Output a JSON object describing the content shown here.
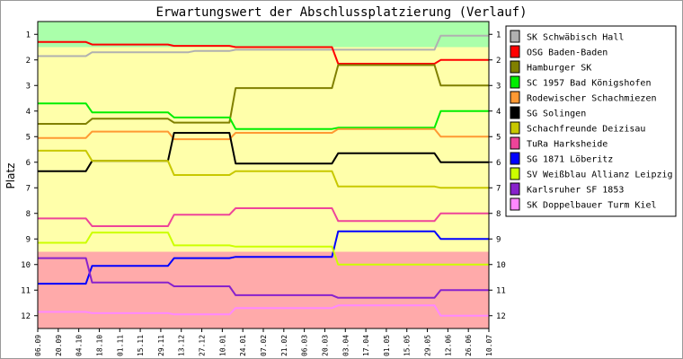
{
  "chart_data": {
    "type": "line",
    "title": "Erwartungswert der Abschlussplatzierung (Verlauf)",
    "ylabel": "Platz",
    "xlabel": "",
    "ylim": [
      12,
      1
    ],
    "y_ticks": [
      1,
      2,
      3,
      4,
      5,
      6,
      7,
      8,
      9,
      10,
      11,
      12
    ],
    "grid": false,
    "legend_position": "right",
    "x": [
      "06.09",
      "20.09",
      "04.10",
      "18.10",
      "01.11",
      "15.11",
      "29.11",
      "13.12",
      "27.12",
      "10.01",
      "24.01",
      "07.02",
      "21.02",
      "06.03",
      "20.03",
      "03.04",
      "17.04",
      "01.05",
      "15.05",
      "29.05",
      "12.06",
      "26.06",
      "10.07"
    ],
    "zones": [
      {
        "from": 0.5,
        "to": 1.5,
        "color": "#aaffaa"
      },
      {
        "from": 1.5,
        "to": 9.5,
        "color": "#ffffaa"
      },
      {
        "from": 9.5,
        "to": 12.5,
        "color": "#ffaaaa"
      }
    ],
    "series": [
      {
        "name": "SK Schwäbisch Hall",
        "color": "#b0b0b0",
        "values": [
          1.85,
          1.85,
          1.85,
          1.7,
          1.7,
          1.7,
          1.7,
          1.7,
          1.65,
          1.65,
          1.6,
          1.6,
          1.6,
          1.6,
          1.6,
          1.6,
          1.6,
          1.6,
          1.6,
          1.6,
          1.05,
          1.05,
          1.05
        ]
      },
      {
        "name": "OSG Baden-Baden",
        "color": "#ff0000",
        "values": [
          1.3,
          1.3,
          1.3,
          1.4,
          1.4,
          1.4,
          1.4,
          1.45,
          1.45,
          1.45,
          1.5,
          1.5,
          1.5,
          1.5,
          1.5,
          2.15,
          2.15,
          2.15,
          2.15,
          2.15,
          2.0,
          2.0,
          2.0
        ]
      },
      {
        "name": "Hamburger SK",
        "color": "#808000",
        "values": [
          4.5,
          4.5,
          4.5,
          4.3,
          4.3,
          4.3,
          4.3,
          4.45,
          4.45,
          4.45,
          3.1,
          3.1,
          3.1,
          3.1,
          3.1,
          2.2,
          2.2,
          2.2,
          2.2,
          2.2,
          3.0,
          3.0,
          3.0
        ]
      },
      {
        "name": "SC 1957 Bad Königshofen",
        "color": "#00ee00",
        "values": [
          3.7,
          3.7,
          3.7,
          4.05,
          4.05,
          4.05,
          4.05,
          4.25,
          4.25,
          4.25,
          4.7,
          4.7,
          4.7,
          4.7,
          4.7,
          4.65,
          4.65,
          4.65,
          4.65,
          4.65,
          4.0,
          4.0,
          4.0
        ]
      },
      {
        "name": "Rodewischer Schachmiezen",
        "color": "#ff9933",
        "values": [
          5.05,
          5.05,
          5.05,
          4.8,
          4.8,
          4.8,
          4.8,
          5.1,
          5.1,
          5.1,
          4.85,
          4.85,
          4.85,
          4.85,
          4.85,
          4.7,
          4.7,
          4.7,
          4.7,
          4.7,
          5.0,
          5.0,
          5.0
        ]
      },
      {
        "name": "SG Solingen",
        "color": "#000000",
        "values": [
          6.35,
          6.35,
          6.35,
          5.95,
          5.95,
          5.95,
          5.95,
          4.85,
          4.85,
          4.85,
          6.05,
          6.05,
          6.05,
          6.05,
          6.05,
          5.65,
          5.65,
          5.65,
          5.65,
          5.65,
          6.0,
          6.0,
          6.0
        ]
      },
      {
        "name": "Schachfreunde Deizisau",
        "color": "#c8c800",
        "values": [
          5.55,
          5.55,
          5.55,
          5.95,
          5.95,
          5.95,
          5.95,
          6.5,
          6.5,
          6.5,
          6.35,
          6.35,
          6.35,
          6.35,
          6.35,
          6.95,
          6.95,
          6.95,
          6.95,
          6.95,
          7.0,
          7.0,
          7.0
        ]
      },
      {
        "name": "TuRa Harksheide",
        "color": "#ee4499",
        "values": [
          8.2,
          8.2,
          8.2,
          8.5,
          8.5,
          8.5,
          8.5,
          8.05,
          8.05,
          8.05,
          7.8,
          7.8,
          7.8,
          7.8,
          7.8,
          8.3,
          8.3,
          8.3,
          8.3,
          8.3,
          8.0,
          8.0,
          8.0
        ]
      },
      {
        "name": "SG 1871 Löberitz",
        "color": "#0000ff",
        "values": [
          10.75,
          10.75,
          10.75,
          10.05,
          10.05,
          10.05,
          10.05,
          9.75,
          9.75,
          9.75,
          9.7,
          9.7,
          9.7,
          9.7,
          9.7,
          8.7,
          8.7,
          8.7,
          8.7,
          8.7,
          9.0,
          9.0,
          9.0
        ]
      },
      {
        "name": "SV Weißblau Allianz Leipzig",
        "color": "#ccff00",
        "values": [
          9.15,
          9.15,
          9.15,
          8.75,
          8.75,
          8.75,
          8.75,
          9.25,
          9.25,
          9.25,
          9.3,
          9.3,
          9.3,
          9.3,
          9.3,
          10.0,
          10.0,
          10.0,
          10.0,
          10.0,
          10.0,
          10.0,
          10.0
        ]
      },
      {
        "name": "Karlsruher SF 1853",
        "color": "#8822cc",
        "values": [
          9.75,
          9.75,
          9.75,
          10.7,
          10.7,
          10.7,
          10.7,
          10.85,
          10.85,
          10.85,
          11.2,
          11.2,
          11.2,
          11.2,
          11.2,
          11.3,
          11.3,
          11.3,
          11.3,
          11.3,
          11.0,
          11.0,
          11.0
        ]
      },
      {
        "name": "SK Doppelbauer Turm Kiel",
        "color": "#ff88ff",
        "values": [
          11.85,
          11.85,
          11.85,
          11.9,
          11.9,
          11.9,
          11.9,
          11.95,
          11.95,
          11.95,
          11.7,
          11.7,
          11.7,
          11.7,
          11.7,
          11.6,
          11.6,
          11.6,
          11.6,
          11.6,
          12.0,
          12.0,
          12.0
        ]
      }
    ]
  }
}
